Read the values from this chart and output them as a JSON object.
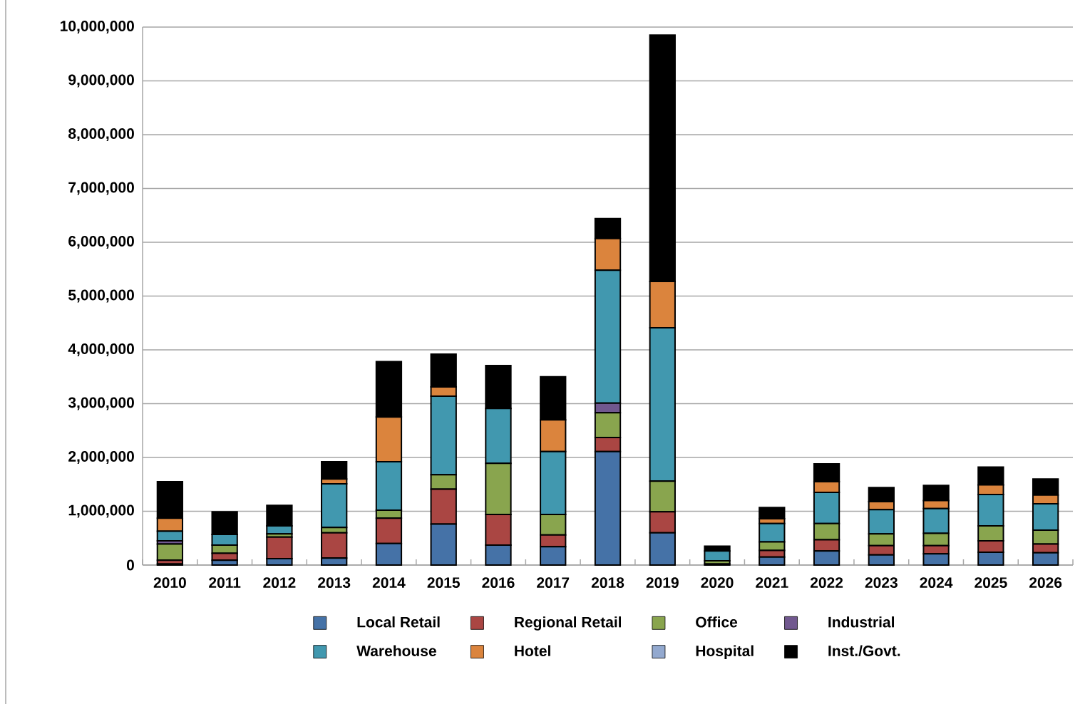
{
  "chart_data": {
    "type": "bar",
    "stacked": true,
    "categories": [
      "2010",
      "2011",
      "2012",
      "2013",
      "2014",
      "2015",
      "2016",
      "2017",
      "2018",
      "2019",
      "2020",
      "2021",
      "2022",
      "2023",
      "2024",
      "2025",
      "2026"
    ],
    "series": [
      {
        "name": "Local Retail",
        "color": "#4572a7",
        "values": [
          20000,
          90000,
          120000,
          130000,
          400000,
          760000,
          370000,
          340000,
          2110000,
          600000,
          20000,
          150000,
          260000,
          190000,
          210000,
          240000,
          230000
        ]
      },
      {
        "name": "Regional Retail",
        "color": "#aa4643",
        "values": [
          70000,
          130000,
          400000,
          470000,
          470000,
          650000,
          570000,
          220000,
          260000,
          390000,
          null,
          120000,
          210000,
          170000,
          150000,
          210000,
          160000
        ]
      },
      {
        "name": "Office",
        "color": "#89a54e",
        "values": [
          300000,
          150000,
          60000,
          100000,
          150000,
          270000,
          950000,
          380000,
          460000,
          570000,
          60000,
          160000,
          300000,
          220000,
          230000,
          280000,
          260000
        ]
      },
      {
        "name": "Industrial",
        "color": "#71588f",
        "values": [
          60000,
          0,
          0,
          0,
          0,
          0,
          0,
          0,
          180000,
          0,
          0,
          0,
          0,
          0,
          0,
          0,
          0
        ]
      },
      {
        "name": "Warehouse",
        "color": "#4198af",
        "values": [
          180000,
          200000,
          150000,
          810000,
          900000,
          1460000,
          1020000,
          1170000,
          2470000,
          2850000,
          180000,
          340000,
          580000,
          450000,
          460000,
          580000,
          490000
        ]
      },
      {
        "name": "Hotel",
        "color": "#db843d",
        "values": [
          240000,
          0,
          0,
          90000,
          830000,
          170000,
          0,
          590000,
          590000,
          860000,
          0,
          90000,
          200000,
          150000,
          150000,
          180000,
          160000
        ]
      },
      {
        "name": "Hospital",
        "color": "#93a9cf",
        "values": [
          0,
          0,
          0,
          0,
          0,
          0,
          0,
          0,
          0,
          0,
          0,
          0,
          0,
          0,
          0,
          0,
          0
        ]
      },
      {
        "name": "Inst./Govt.",
        "color": "#000000",
        "values": [
          680000,
          420000,
          380000,
          320000,
          1030000,
          610000,
          800000,
          800000,
          370000,
          4580000,
          90000,
          210000,
          330000,
          260000,
          280000,
          330000,
          300000
        ]
      }
    ],
    "ylim": [
      0,
      10000000
    ],
    "yticks": [
      {
        "value": 0,
        "label": "0"
      },
      {
        "value": 1000000,
        "label": "1,000,000"
      },
      {
        "value": 2000000,
        "label": "2,000,000"
      },
      {
        "value": 3000000,
        "label": "3,000,000"
      },
      {
        "value": 4000000,
        "label": "4,000,000"
      },
      {
        "value": 5000000,
        "label": "5,000,000"
      },
      {
        "value": 6000000,
        "label": "6,000,000"
      },
      {
        "value": 7000000,
        "label": "7,000,000"
      },
      {
        "value": 8000000,
        "label": "8,000,000"
      },
      {
        "value": 9000000,
        "label": "9,000,000"
      },
      {
        "value": 10000000,
        "label": "10,000,000"
      }
    ],
    "grid": "y",
    "legend": "bottom"
  }
}
